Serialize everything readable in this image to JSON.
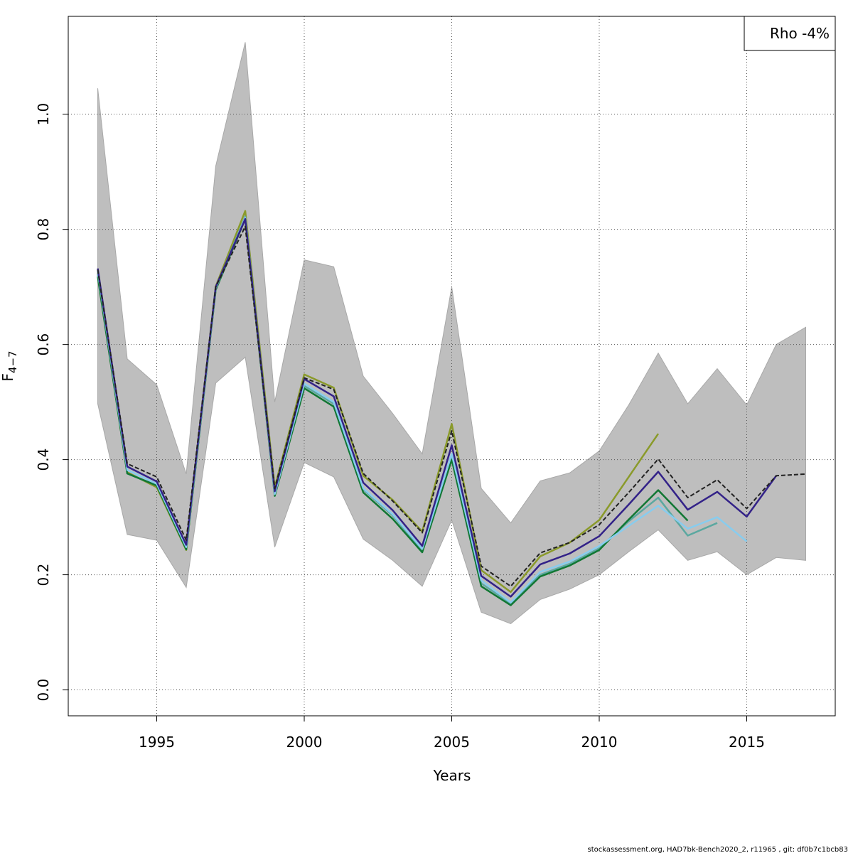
{
  "chart_data": {
    "type": "line",
    "xlabel": "Years",
    "ylabel_main": "F",
    "ylabel_sub": "4−7",
    "xlim": [
      1992,
      2018
    ],
    "ylim": [
      -0.045,
      1.17
    ],
    "xticks": [
      1995,
      2000,
      2005,
      2010,
      2015
    ],
    "yticks": [
      0.0,
      0.2,
      0.4,
      0.6,
      0.8,
      1.0
    ],
    "ytick_labels": [
      "0.0",
      "0.2",
      "0.4",
      "0.6",
      "0.8",
      "1.0"
    ],
    "grid": true,
    "legend": {
      "text": "Rho -4%",
      "position": "top-right"
    },
    "confidence_band": {
      "color": "#bebebe",
      "x": [
        1993,
        1994,
        1995,
        1996,
        1997,
        1998,
        1999,
        2000,
        2001,
        2002,
        2003,
        2004,
        2005,
        2006,
        2007,
        2008,
        2009,
        2010,
        2011,
        2012,
        2013,
        2014,
        2015,
        2016,
        2017
      ],
      "upper": [
        1.045,
        0.575,
        0.53,
        0.375,
        0.91,
        1.125,
        0.5,
        0.747,
        0.735,
        0.545,
        0.48,
        0.41,
        0.7,
        0.35,
        0.29,
        0.363,
        0.377,
        0.415,
        0.495,
        0.585,
        0.497,
        0.558,
        0.495,
        0.6,
        0.63
      ],
      "lower": [
        0.497,
        0.27,
        0.26,
        0.178,
        0.533,
        0.578,
        0.248,
        0.395,
        0.37,
        0.262,
        0.225,
        0.18,
        0.295,
        0.135,
        0.115,
        0.157,
        0.175,
        0.2,
        0.24,
        0.278,
        0.225,
        0.24,
        0.2,
        0.23,
        0.225
      ]
    },
    "series": [
      {
        "color": "#8a9a2a",
        "dashed": false,
        "x": [
          1993,
          1994,
          1995,
          1996,
          1997,
          1998,
          1999,
          2000,
          2001,
          2002,
          2003,
          2004,
          2005,
          2006,
          2007,
          2008,
          2009,
          2010,
          2011,
          2012
        ],
        "values": [
          0.725,
          0.378,
          0.352,
          0.243,
          0.701,
          0.832,
          0.352,
          0.548,
          0.525,
          0.372,
          0.33,
          0.275,
          0.462,
          0.208,
          0.17,
          0.232,
          0.256,
          0.295,
          0.37,
          0.445
        ]
      },
      {
        "color": "#5ba8a0",
        "dashed": false,
        "x": [
          1993,
          1994,
          1995,
          1996,
          1997,
          1998,
          1999,
          2000,
          2001,
          2002,
          2003,
          2004,
          2005,
          2006,
          2007,
          2008,
          2009,
          2010,
          2011,
          2012,
          2013,
          2014
        ],
        "values": [
          0.722,
          0.376,
          0.355,
          0.245,
          0.698,
          0.822,
          0.342,
          0.528,
          0.497,
          0.348,
          0.303,
          0.242,
          0.403,
          0.185,
          0.15,
          0.2,
          0.219,
          0.246,
          0.293,
          0.334,
          0.268,
          0.29
        ]
      },
      {
        "color": "#117733",
        "dashed": false,
        "x": [
          1993,
          1994,
          1995,
          1996,
          1997,
          1998,
          1999,
          2000,
          2001,
          2002,
          2003,
          2004,
          2005,
          2006,
          2007,
          2008,
          2009,
          2010,
          2011,
          2012,
          2013
        ],
        "values": [
          0.718,
          0.376,
          0.355,
          0.244,
          0.695,
          0.818,
          0.337,
          0.524,
          0.492,
          0.343,
          0.297,
          0.239,
          0.4,
          0.18,
          0.147,
          0.197,
          0.216,
          0.243,
          0.296,
          0.347,
          0.294
        ]
      },
      {
        "color": "#88ccee",
        "dashed": false,
        "x": [
          1993,
          1994,
          1995,
          1996,
          1997,
          1998,
          1999,
          2000,
          2001,
          2002,
          2003,
          2004,
          2005,
          2006,
          2007,
          2008,
          2009,
          2010,
          2011,
          2012,
          2013,
          2014,
          2015
        ],
        "values": [
          0.728,
          0.382,
          0.358,
          0.248,
          0.698,
          0.82,
          0.34,
          0.532,
          0.5,
          0.35,
          0.305,
          0.245,
          0.41,
          0.19,
          0.152,
          0.205,
          0.223,
          0.25,
          0.285,
          0.32,
          0.28,
          0.3,
          0.258
        ]
      },
      {
        "color": "#332288",
        "dashed": false,
        "x": [
          1993,
          1994,
          1995,
          1996,
          1997,
          1998,
          1999,
          2000,
          2001,
          2002,
          2003,
          2004,
          2005,
          2006,
          2007,
          2008,
          2009,
          2010,
          2011,
          2012,
          2013,
          2014,
          2015,
          2016
        ],
        "values": [
          0.732,
          0.388,
          0.362,
          0.252,
          0.7,
          0.818,
          0.345,
          0.54,
          0.51,
          0.36,
          0.312,
          0.25,
          0.425,
          0.198,
          0.162,
          0.218,
          0.237,
          0.267,
          0.322,
          0.379,
          0.313,
          0.344,
          0.301,
          0.372
        ]
      },
      {
        "color": "#222222",
        "dashed": true,
        "x": [
          1993,
          1994,
          1995,
          1996,
          1997,
          1998,
          1999,
          2000,
          2001,
          2002,
          2003,
          2004,
          2005,
          2006,
          2007,
          2008,
          2009,
          2010,
          2011,
          2012,
          2013,
          2014,
          2015,
          2016,
          2017
        ],
        "values": [
          0.73,
          0.393,
          0.37,
          0.26,
          0.7,
          0.805,
          0.35,
          0.542,
          0.522,
          0.376,
          0.328,
          0.273,
          0.45,
          0.215,
          0.18,
          0.238,
          0.256,
          0.287,
          0.343,
          0.401,
          0.334,
          0.365,
          0.315,
          0.372,
          0.375
        ]
      }
    ]
  },
  "footer": "stockassessment.org, HAD7bk-Bench2020_2, r11965 , git: df0b7c1bcb83"
}
